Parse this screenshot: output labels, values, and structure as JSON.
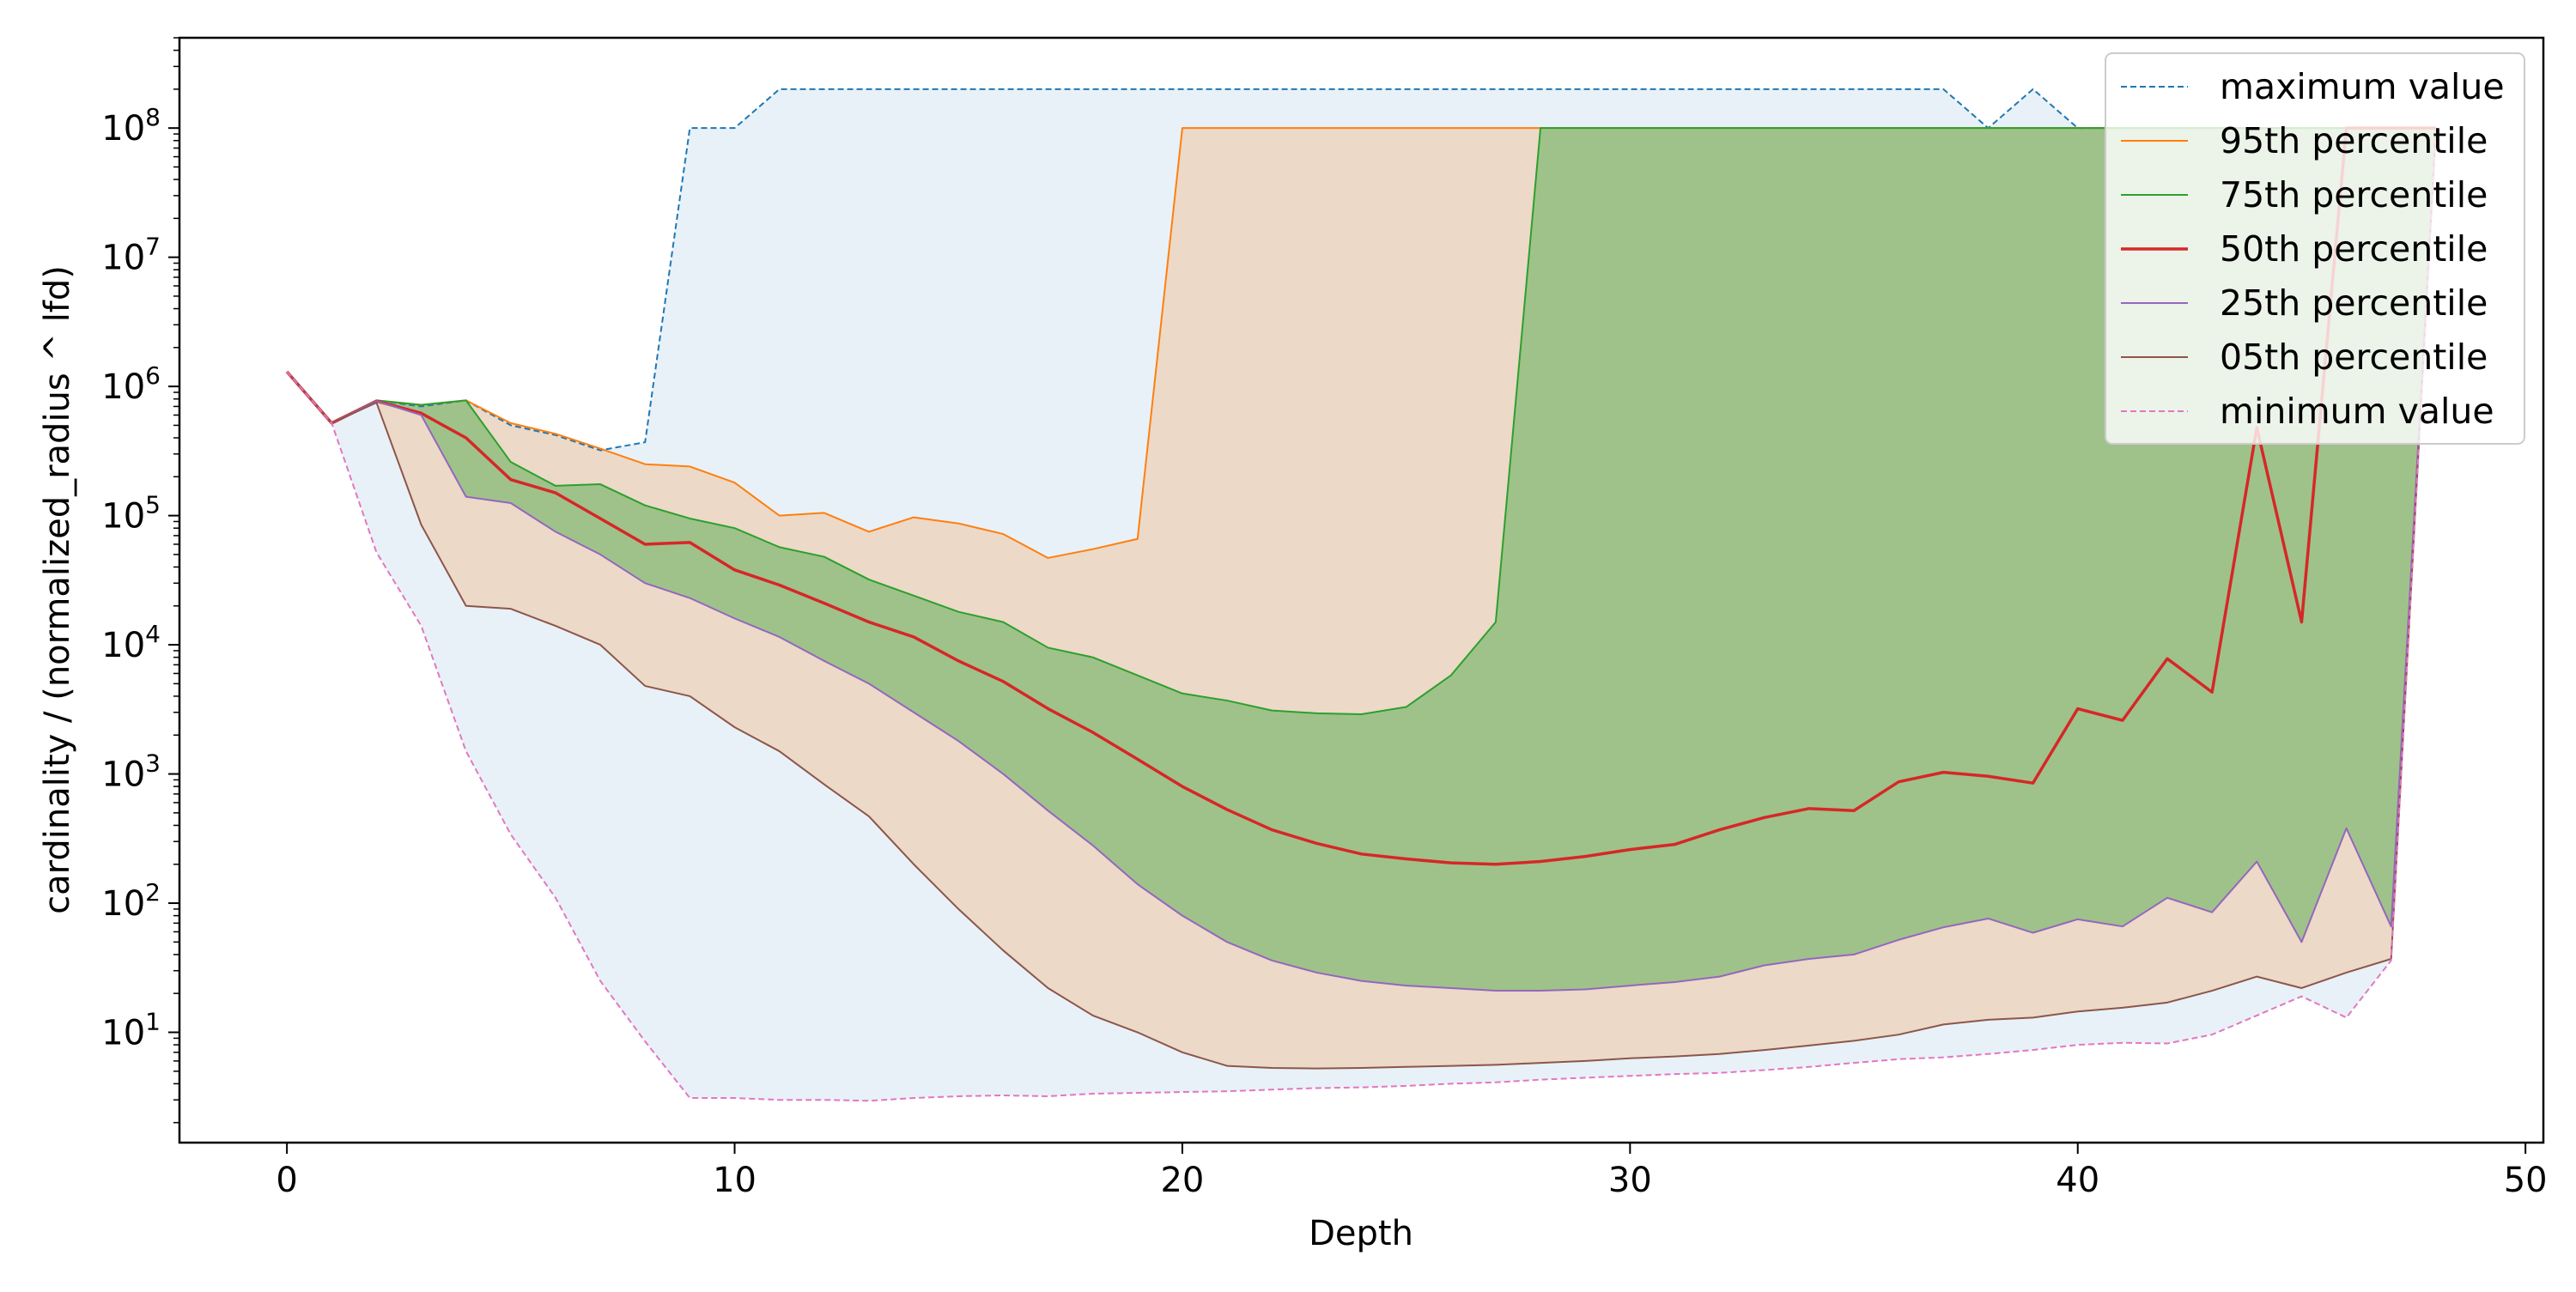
{
  "chart_data": {
    "type": "area",
    "title": "",
    "xlabel": "Depth",
    "ylabel": "cardinality / (normalized_radius ^ lfd)",
    "y_scale": "log",
    "xlim": [
      -2.4,
      50.4
    ],
    "ylim": [
      1.4,
      500000000
    ],
    "x_ticks": [
      0,
      10,
      20,
      30,
      40,
      50
    ],
    "y_ticks": [
      10,
      100,
      1000,
      10000,
      100000,
      1000000,
      10000000,
      100000000
    ],
    "y_tick_labels": [
      {
        "base": "10",
        "exp": "1"
      },
      {
        "base": "10",
        "exp": "2"
      },
      {
        "base": "10",
        "exp": "3"
      },
      {
        "base": "10",
        "exp": "4"
      },
      {
        "base": "10",
        "exp": "5"
      },
      {
        "base": "10",
        "exp": "6"
      },
      {
        "base": "10",
        "exp": "7"
      },
      {
        "base": "10",
        "exp": "8"
      }
    ],
    "grid": false,
    "legend_position": "top-right",
    "x": [
      0,
      1,
      2,
      3,
      4,
      5,
      6,
      7,
      8,
      9,
      10,
      11,
      12,
      13,
      14,
      15,
      16,
      17,
      18,
      19,
      20,
      21,
      22,
      23,
      24,
      25,
      26,
      27,
      28,
      29,
      30,
      31,
      32,
      33,
      34,
      35,
      36,
      37,
      38,
      39,
      40,
      41,
      42,
      43,
      44,
      45,
      46,
      47,
      48
    ],
    "series": [
      {
        "name": "maximum value",
        "color": "#1f77b4",
        "style": "dashed",
        "width": 2,
        "values": [
          1300000,
          520000,
          780000,
          700000,
          780000,
          500000,
          420000,
          320000,
          370000,
          100000000,
          100000000,
          200000000,
          200000000,
          200000000,
          200000000,
          200000000,
          200000000,
          200000000,
          200000000,
          200000000,
          200000000,
          200000000,
          200000000,
          200000000,
          200000000,
          200000000,
          200000000,
          200000000,
          200000000,
          200000000,
          200000000,
          200000000,
          200000000,
          200000000,
          200000000,
          200000000,
          200000000,
          200000000,
          100000000,
          200000000,
          100000000,
          100000000,
          100000000,
          100000000,
          100000000,
          100000000,
          100000000,
          100000000,
          100000000
        ]
      },
      {
        "name": "95th percentile",
        "color": "#ff7f0e",
        "style": "solid",
        "width": 2,
        "values": [
          1300000,
          520000,
          780000,
          720000,
          780000,
          520000,
          430000,
          330000,
          250000,
          240000,
          180000,
          100000,
          105000,
          75000,
          97000,
          87000,
          72000,
          47000,
          55000,
          66000,
          100000000,
          100000000,
          100000000,
          100000000,
          100000000,
          100000000,
          100000000,
          100000000,
          100000000,
          100000000,
          100000000,
          100000000,
          100000000,
          100000000,
          100000000,
          100000000,
          100000000,
          100000000,
          100000000,
          100000000,
          100000000,
          100000000,
          100000000,
          100000000,
          100000000,
          100000000,
          100000000,
          100000000,
          100000000
        ]
      },
      {
        "name": "75th percentile",
        "color": "#2ca02c",
        "style": "solid",
        "width": 2,
        "values": [
          1300000,
          520000,
          780000,
          720000,
          780000,
          260000,
          170000,
          175000,
          120000,
          95000,
          80000,
          57000,
          48000,
          32000,
          24000,
          18000,
          15000,
          9500,
          8000,
          5800,
          4200,
          3700,
          3100,
          2950,
          2900,
          3300,
          5800,
          15000,
          100000000,
          100000000,
          100000000,
          100000000,
          100000000,
          100000000,
          100000000,
          100000000,
          100000000,
          100000000,
          100000000,
          100000000,
          100000000,
          100000000,
          100000000,
          100000000,
          100000000,
          100000000,
          100000000,
          100000000,
          100000000
        ]
      },
      {
        "name": "50th percentile",
        "color": "#d62728",
        "style": "solid",
        "width": 3.5,
        "values": [
          1300000,
          520000,
          770000,
          620000,
          400000,
          190000,
          150000,
          95000,
          60000,
          62000,
          38000,
          29000,
          21000,
          15000,
          11500,
          7500,
          5200,
          3200,
          2100,
          1300,
          800,
          530,
          370,
          290,
          240,
          220,
          205,
          200,
          210,
          230,
          260,
          285,
          370,
          460,
          540,
          520,
          870,
          1030,
          960,
          850,
          3200,
          2600,
          7800,
          4300,
          480000,
          15000,
          100000000,
          100000000,
          100000000
        ]
      },
      {
        "name": "25th percentile",
        "color": "#9467bd",
        "style": "solid",
        "width": 2,
        "values": [
          1300000,
          520000,
          770000,
          600000,
          140000,
          125000,
          75000,
          50000,
          30000,
          23000,
          16000,
          11500,
          7500,
          5000,
          3000,
          1800,
          1000,
          520,
          280,
          140,
          80,
          50,
          36,
          29,
          25,
          23,
          22,
          21,
          21,
          21.5,
          23,
          24.5,
          27,
          33,
          37,
          40,
          52,
          65,
          76,
          59,
          75,
          66,
          110,
          85,
          210,
          50,
          380,
          66,
          100000000
        ]
      },
      {
        "name": "05th percentile",
        "color": "#8c564b",
        "style": "solid",
        "width": 2,
        "values": [
          1300000,
          520000,
          750000,
          85000,
          20000,
          19000,
          14000,
          10000,
          4800,
          4000,
          2300,
          1500,
          830,
          470,
          200,
          90,
          43,
          22,
          13.5,
          10,
          7,
          5.5,
          5.3,
          5.25,
          5.3,
          5.4,
          5.5,
          5.6,
          5.8,
          6,
          6.3,
          6.5,
          6.8,
          7.3,
          7.9,
          8.6,
          9.6,
          11.5,
          12.5,
          13,
          14.5,
          15.5,
          17,
          21,
          27,
          22,
          29,
          37,
          100000000
        ]
      },
      {
        "name": "minimum value",
        "color": "#e377c2",
        "style": "dashed",
        "width": 2,
        "values": [
          1300000,
          520000,
          52000,
          14000,
          1500,
          340,
          110,
          25,
          8.5,
          3.1,
          3.1,
          3.0,
          3.0,
          2.95,
          3.1,
          3.2,
          3.25,
          3.2,
          3.35,
          3.4,
          3.45,
          3.5,
          3.6,
          3.7,
          3.75,
          3.85,
          4,
          4.1,
          4.3,
          4.45,
          4.6,
          4.75,
          4.85,
          5.1,
          5.4,
          5.8,
          6.2,
          6.4,
          6.8,
          7.3,
          8,
          8.3,
          8.2,
          9.6,
          13.5,
          19,
          13,
          36,
          100000000
        ]
      }
    ],
    "bands": [
      {
        "between": [
          "minimum value",
          "maximum value"
        ],
        "color": "#1f77b4",
        "opacity": 0.1
      },
      {
        "between": [
          "05th percentile",
          "95th percentile"
        ],
        "color": "#ff7f0e",
        "opacity": 0.2
      },
      {
        "between": [
          "25th percentile",
          "75th percentile"
        ],
        "color": "#2ca02c",
        "opacity": 0.4
      }
    ]
  }
}
